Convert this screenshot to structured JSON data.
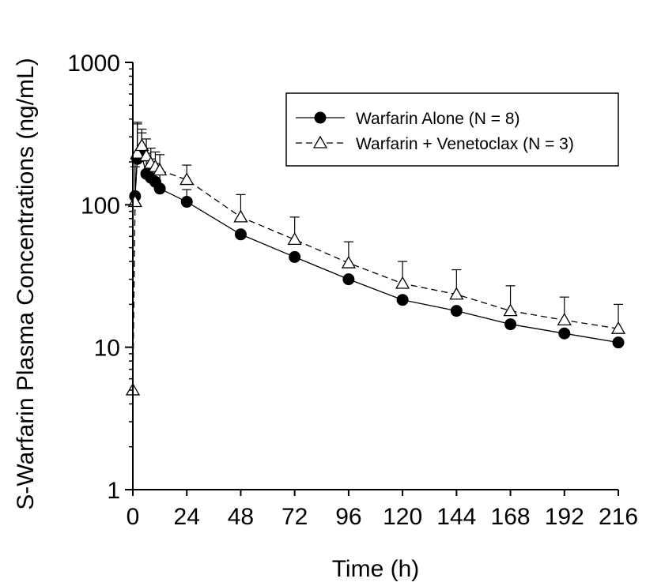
{
  "chart_data": {
    "type": "line",
    "xlabel": "Time (h)",
    "ylabel": "S-Warfarin Plasma Concentrations (ng/mL)",
    "x_scale": "linear",
    "y_scale": "log",
    "xlim": [
      0,
      216
    ],
    "ylim": [
      1,
      1000
    ],
    "x_ticks": [
      0,
      24,
      48,
      72,
      96,
      120,
      144,
      168,
      192,
      216
    ],
    "x_tick_labels": [
      "0",
      "24",
      "48",
      "72",
      "96",
      "120",
      "144",
      "168",
      "192",
      "216"
    ],
    "y_ticks": [
      1,
      10,
      100,
      1000
    ],
    "y_tick_labels": [
      "1",
      "10",
      "100",
      "1000"
    ],
    "grid": false,
    "legend_position": "top-right",
    "series": [
      {
        "name": "Warfarin Alone (N = 8)",
        "marker": "filled-circle",
        "line_style": "solid",
        "color": "#000000",
        "x": [
          1,
          2,
          4,
          6,
          8,
          10,
          12,
          24,
          48,
          72,
          96,
          120,
          144,
          168,
          192,
          216
        ],
        "y": [
          115,
          210,
          220,
          165,
          155,
          145,
          130,
          105,
          62,
          43,
          30,
          21.5,
          18,
          14.5,
          12.5,
          10.8
        ],
        "error_upper": [
          185,
          380,
          320,
          230,
          210,
          195,
          170,
          128,
          0,
          0,
          0,
          0,
          0,
          0,
          0,
          0
        ]
      },
      {
        "name": "Warfarin + Venetoclax (N = 3)",
        "marker": "open-triangle",
        "line_style": "dashed",
        "color": "#000000",
        "x": [
          0,
          1,
          2,
          4,
          6,
          8,
          10,
          12,
          24,
          48,
          72,
          96,
          120,
          144,
          168,
          192,
          216
        ],
        "y": [
          5,
          105,
          230,
          260,
          220,
          195,
          185,
          175,
          150,
          82,
          57,
          39,
          28,
          23.5,
          18,
          15.5,
          13.5
        ],
        "error_upper": [
          5,
          210,
          370,
          340,
          290,
          250,
          235,
          225,
          190,
          118,
          82,
          55,
          40,
          35,
          27,
          22.5,
          20
        ]
      }
    ]
  }
}
